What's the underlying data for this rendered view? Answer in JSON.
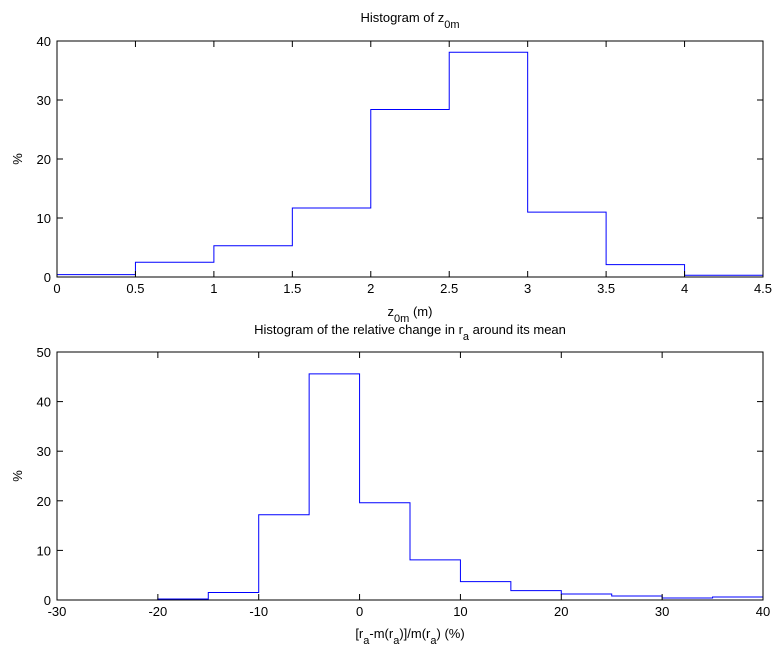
{
  "chart_data": [
    {
      "type": "histogram",
      "title": "Histogram of z",
      "title_sub": "0m",
      "xlabel": "z",
      "xlabel_sub": "0m",
      "xlabel_suffix": " (m)",
      "ylabel": "%",
      "xlim": [
        0,
        4.5
      ],
      "ylim": [
        0,
        40
      ],
      "xticks": [
        "0",
        "0.5",
        "1",
        "1.5",
        "2",
        "2.5",
        "3",
        "3.5",
        "4",
        "4.5"
      ],
      "yticks": [
        "0",
        "10",
        "20",
        "30",
        "40"
      ],
      "bin_edges": [
        0,
        0.5,
        1,
        1.5,
        2,
        2.5,
        3,
        3.5,
        4,
        4.5
      ],
      "values": [
        0.4,
        2.5,
        5.3,
        11.7,
        28.4,
        38.1,
        11.0,
        2.1,
        0.3
      ],
      "color": "#0000ff",
      "grid": false
    },
    {
      "type": "histogram",
      "title": "Histogram of the relative change in r",
      "title_sub": "a",
      "title_suffix": " around its mean",
      "xlabel_parts": [
        {
          "t": "[r"
        },
        {
          "t": "a",
          "sub": true
        },
        {
          "t": "-m(r"
        },
        {
          "t": "a",
          "sub": true
        },
        {
          "t": ")]/m(r"
        },
        {
          "t": "a",
          "sub": true
        },
        {
          "t": ") (%)"
        }
      ],
      "ylabel": "%",
      "xlim": [
        -30,
        40
      ],
      "ylim": [
        0,
        50
      ],
      "xticks": [
        "-30",
        "-20",
        "-10",
        "0",
        "10",
        "20",
        "30",
        "40"
      ],
      "yticks": [
        "0",
        "10",
        "20",
        "30",
        "40",
        "50"
      ],
      "bin_edges": [
        -20,
        -15,
        -10,
        -5,
        0,
        5,
        10,
        15,
        20,
        25,
        30,
        35,
        40
      ],
      "values": [
        0.2,
        1.5,
        17.2,
        45.6,
        19.6,
        8.1,
        3.7,
        1.9,
        1.2,
        0.8,
        0.4,
        0.6
      ],
      "color": "#0000ff",
      "grid": false
    }
  ]
}
